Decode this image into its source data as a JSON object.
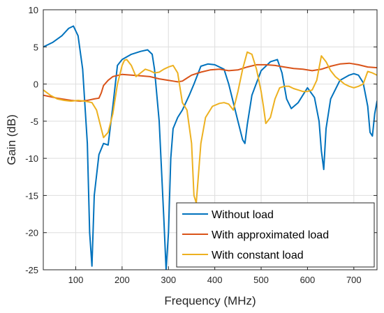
{
  "chart_data": {
    "type": "line",
    "title": "",
    "xlabel": "Frequency (MHz)",
    "ylabel": "Gain (dB)",
    "xlim": [
      30,
      750
    ],
    "ylim": [
      -25,
      10
    ],
    "xticks": [
      100,
      200,
      300,
      400,
      500,
      600,
      700
    ],
    "yticks": [
      -25,
      -20,
      -15,
      -10,
      -5,
      0,
      5,
      10
    ],
    "xtick_labels": [
      "100",
      "200",
      "300",
      "400",
      "500",
      "600",
      "700"
    ],
    "ytick_labels": [
      "-25",
      "-20",
      "-15",
      "-10",
      "-5",
      "0",
      "5",
      "10"
    ],
    "grid": true,
    "legend_position": "bottom-right",
    "series": [
      {
        "name": "Without load",
        "color": "#0072BD",
        "x": [
          30,
          50,
          70,
          85,
          95,
          105,
          115,
          125,
          130,
          135,
          140,
          150,
          160,
          170,
          180,
          190,
          200,
          220,
          240,
          255,
          265,
          270,
          280,
          290,
          295,
          300,
          305,
          310,
          320,
          330,
          345,
          355,
          370,
          385,
          400,
          420,
          430,
          440,
          450,
          460,
          465,
          470,
          480,
          500,
          520,
          535,
          545,
          555,
          565,
          580,
          600,
          615,
          625,
          630,
          635,
          640,
          650,
          670,
          690,
          700,
          710,
          720,
          730,
          735,
          740,
          745,
          750
        ],
        "y": [
          5.0,
          5.6,
          6.5,
          7.5,
          7.8,
          6.5,
          2.0,
          -8.0,
          -20.0,
          -24.5,
          -15.0,
          -9.5,
          -8.0,
          -8.2,
          -3.0,
          2.5,
          3.3,
          4.0,
          4.4,
          4.6,
          4.0,
          2.0,
          -5.0,
          -18.0,
          -25.0,
          -20.0,
          -10.0,
          -6.0,
          -4.5,
          -3.5,
          -1.5,
          0.0,
          2.4,
          2.7,
          2.6,
          2.0,
          0.0,
          -2.5,
          -5.0,
          -7.5,
          -8.0,
          -5.5,
          -1.5,
          1.8,
          3.0,
          3.3,
          1.5,
          -2.0,
          -3.3,
          -2.5,
          -0.5,
          -1.8,
          -5.0,
          -9.0,
          -11.5,
          -6.0,
          -2.0,
          0.5,
          1.2,
          1.4,
          1.2,
          0.2,
          -3.0,
          -6.5,
          -7.0,
          -4.0,
          -2.3
        ]
      },
      {
        "name": "With approximated load",
        "color": "#D95319",
        "x": [
          30,
          60,
          90,
          110,
          125,
          140,
          150,
          155,
          160,
          170,
          180,
          200,
          220,
          240,
          260,
          280,
          300,
          310,
          320,
          330,
          340,
          350,
          370,
          390,
          410,
          430,
          450,
          470,
          490,
          510,
          530,
          550,
          570,
          590,
          610,
          630,
          650,
          670,
          690,
          710,
          730,
          750
        ],
        "y": [
          -1.5,
          -1.9,
          -2.2,
          -2.3,
          -2.2,
          -2.0,
          -1.9,
          -1.2,
          -0.2,
          0.5,
          1.0,
          1.3,
          1.2,
          1.1,
          1.0,
          0.7,
          0.5,
          0.4,
          0.3,
          0.4,
          0.8,
          1.2,
          1.6,
          1.9,
          2.0,
          1.8,
          1.9,
          2.3,
          2.6,
          2.6,
          2.5,
          2.3,
          2.1,
          2.0,
          1.8,
          2.0,
          2.4,
          2.7,
          2.8,
          2.6,
          2.3,
          2.2
        ]
      },
      {
        "name": "With constant load",
        "color": "#EDB120",
        "x": [
          30,
          45,
          60,
          75,
          90,
          105,
          120,
          135,
          145,
          155,
          160,
          170,
          180,
          190,
          200,
          205,
          210,
          220,
          230,
          240,
          250,
          260,
          270,
          280,
          290,
          300,
          310,
          320,
          330,
          340,
          350,
          355,
          360,
          365,
          370,
          380,
          395,
          410,
          420,
          430,
          440,
          450,
          460,
          470,
          480,
          490,
          500,
          505,
          510,
          520,
          530,
          540,
          550,
          560,
          570,
          580,
          590,
          600,
          610,
          620,
          630,
          640,
          650,
          660,
          670,
          680,
          690,
          700,
          710,
          720,
          730,
          740,
          750
        ],
        "y": [
          -0.8,
          -1.5,
          -2.0,
          -2.2,
          -2.3,
          -2.2,
          -2.3,
          -2.5,
          -3.5,
          -6.0,
          -7.2,
          -6.5,
          -4.0,
          0.0,
          2.5,
          3.2,
          3.3,
          2.5,
          1.0,
          1.5,
          2.0,
          1.8,
          1.5,
          1.6,
          2.0,
          2.3,
          2.5,
          1.5,
          -2.5,
          -3.5,
          -8.0,
          -15.0,
          -16.0,
          -12.0,
          -8.0,
          -4.5,
          -3.0,
          -2.6,
          -2.5,
          -2.7,
          -3.5,
          -1.0,
          2.0,
          4.3,
          4.0,
          2.0,
          -1.0,
          -3.0,
          -5.3,
          -4.5,
          -2.0,
          -0.5,
          -0.3,
          -0.3,
          -0.6,
          -0.8,
          -1.0,
          -1.0,
          -0.8,
          0.5,
          3.8,
          3.0,
          1.8,
          1.0,
          0.5,
          0.0,
          -0.3,
          -0.5,
          -0.3,
          0.0,
          1.7,
          1.5,
          1.2
        ]
      }
    ]
  }
}
